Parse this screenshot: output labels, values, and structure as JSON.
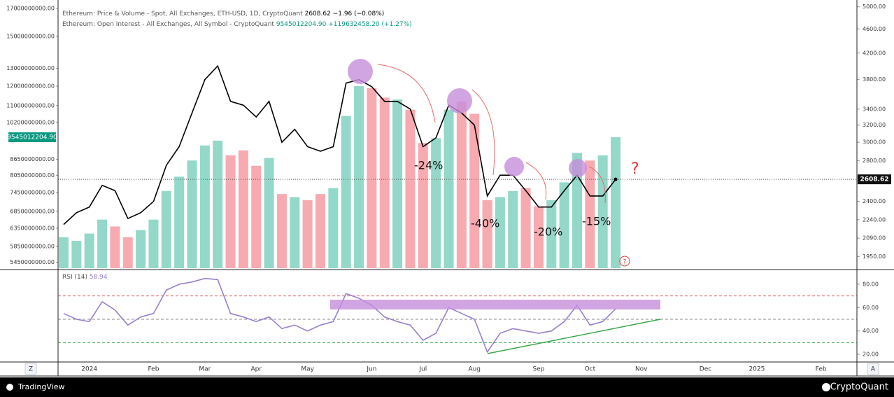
{
  "chart_data": [
    {
      "type": "combo",
      "categories": [
        null,
        null,
        "2024",
        null,
        null,
        null,
        null,
        "Feb",
        null,
        null,
        null,
        "Mar",
        null,
        null,
        null,
        "Apr",
        null,
        null,
        null,
        "May",
        null,
        null,
        null,
        null,
        "Jun",
        null,
        null,
        null,
        "Jul",
        null,
        null,
        null,
        "Aug",
        null,
        null,
        null,
        null,
        "Sep",
        null,
        null,
        null,
        "Oct",
        null,
        null,
        null,
        "Nov",
        null,
        null,
        null,
        null,
        "Dec",
        null,
        null,
        null,
        "2025",
        null,
        null,
        null,
        null,
        "Feb",
        null
      ],
      "series": [
        {
          "name": "Ethereum: Price & Volume - Spot, All Exchanges, ETH-USD, 1D, CryptoQuant",
          "type": "line",
          "axis": "y2",
          "color": "#000000",
          "change": "−1.96 (−0.08%)",
          "values": [
            2200,
            2300,
            2350,
            2550,
            2500,
            2250,
            2300,
            2400,
            2750,
            2950,
            3350,
            3800,
            4000,
            3500,
            3450,
            3300,
            3500,
            3000,
            3150,
            2950,
            2900,
            2950,
            3750,
            3800,
            3700,
            3500,
            3500,
            3400,
            2950,
            3050,
            3450,
            3350,
            3200,
            2450,
            2650,
            2650,
            2500,
            2350,
            2350,
            2500,
            2650,
            2450,
            2450,
            2608.62,
            null,
            null,
            null,
            null,
            null,
            null,
            null,
            null,
            null,
            null,
            null,
            null,
            null,
            null,
            null,
            null,
            null
          ]
        },
        {
          "name": "Ethereum: Open Interest - All Exchanges, All Symbol - CryptoQuant",
          "type": "bar",
          "up_color": "#93d8c8",
          "down_color": "#f7aab0",
          "label_color": "#089981",
          "last_label": "9545012204.90",
          "change": "+119632458.20 (+1.27%)",
          "values": [
            6100000000,
            6000000000,
            6200000000,
            6600000000,
            6400000000,
            6100000000,
            6300000000,
            6600000000,
            7500000000,
            8000000000,
            8600000000,
            9200000000,
            9400000000,
            8800000000,
            9000000000,
            8400000000,
            8700000000,
            7400000000,
            7300000000,
            7200000000,
            7400000000,
            7600000000,
            10500000000,
            12000000000,
            11900000000,
            11400000000,
            11300000000,
            10800000000,
            9300000000,
            9500000000,
            10800000000,
            11200000000,
            10600000000,
            7200000000,
            7300000000,
            7500000000,
            7600000000,
            7000000000,
            7200000000,
            7800000000,
            8900000000,
            8600000000,
            8800000000,
            9545012204.9,
            null,
            null,
            null,
            null,
            null,
            null,
            null,
            null,
            null,
            null,
            null,
            null,
            null,
            null,
            null,
            null,
            null
          ]
        }
      ],
      "log_scale": true,
      "ylim": [
        5310000000,
        17650000000
      ],
      "yticks": [
        {
          "value": 17000000000,
          "label": "17000000000.00"
        },
        {
          "value": 15000000000,
          "label": "15000000000.00"
        },
        {
          "value": 13000000000,
          "label": "13000000000.00"
        },
        {
          "value": 12000000000,
          "label": "12000000000.00"
        },
        {
          "value": 11000000000,
          "label": "11000000000.00"
        },
        {
          "value": 10200000000,
          "label": "10200000000.00"
        },
        {
          "value": 8650000000,
          "label": "8650000000.00"
        },
        {
          "value": 8050000000,
          "label": "8050000000.00"
        },
        {
          "value": 7450000000,
          "label": "7450000000.00"
        },
        {
          "value": 6850000000,
          "label": "6850000000.00"
        },
        {
          "value": 6350000000,
          "label": "6350000000.00"
        },
        {
          "value": 5850000000,
          "label": "5850000000.00"
        },
        {
          "value": 5450000000,
          "label": "5450000000.00"
        }
      ],
      "y2_log_scale": true,
      "y2lim": [
        1866,
        5130
      ],
      "y2ticks": [
        {
          "value": 5000,
          "label": "5000.00"
        },
        {
          "value": 4600,
          "label": "4600.00"
        },
        {
          "value": 4200,
          "label": "4200.00"
        },
        {
          "value": 3800,
          "label": "3800.00"
        },
        {
          "value": 3400,
          "label": "3400.00"
        },
        {
          "value": 3200,
          "label": "3200.00"
        },
        {
          "value": 3000,
          "label": "3000.00"
        },
        {
          "value": 2800,
          "label": "2800.00"
        },
        {
          "value": 2400,
          "label": "2400.00"
        },
        {
          "value": 2240,
          "label": "2240.00"
        },
        {
          "value": 2090,
          "label": "2090.00"
        },
        {
          "value": 1950,
          "label": "1950.00"
        }
      ],
      "grid": false,
      "annotations": [
        "-24%",
        "-40%",
        "-20%",
        "-15%",
        "?",
        "?"
      ]
    },
    {
      "type": "line",
      "series": [
        {
          "name": "RSI (14)",
          "color": "#9a7fd1",
          "values": [
            55,
            50,
            48,
            65,
            58,
            45,
            52,
            55,
            75,
            80,
            82,
            85,
            84,
            55,
            52,
            48,
            52,
            42,
            45,
            40,
            45,
            48,
            72,
            68,
            62,
            52,
            48,
            45,
            32,
            38,
            60,
            55,
            50,
            22,
            38,
            42,
            40,
            38,
            40,
            48,
            62,
            45,
            48,
            58.94,
            null,
            null,
            null,
            null,
            null,
            null,
            null,
            null,
            null,
            null,
            null,
            null,
            null,
            null,
            null,
            null,
            null
          ]
        }
      ],
      "ylim": [
        13.4,
        90.8
      ],
      "yticks": [
        {
          "value": 20,
          "label": "20.00"
        },
        {
          "value": 40,
          "label": "40.00"
        },
        {
          "value": 60,
          "label": "60.00"
        },
        {
          "value": 80,
          "label": "80.00"
        }
      ],
      "levels": [
        {
          "value": 70,
          "color": "#e05a5a"
        },
        {
          "value": 50,
          "color": "#888888"
        },
        {
          "value": 30,
          "color": "#3aa84a"
        }
      ],
      "grid": false
    }
  ],
  "toolbar": {
    "reset": "Z",
    "auto": "A"
  },
  "footer": {
    "brand_left": "TradingView",
    "brand_right": "CryptoQuant"
  }
}
